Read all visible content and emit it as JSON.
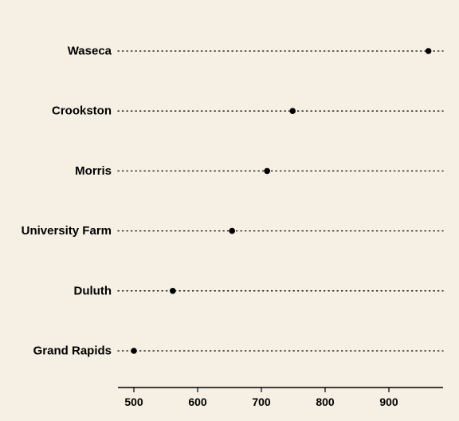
{
  "chart_data": {
    "type": "scatter",
    "style": "dot-plot",
    "categories": [
      "Waseca",
      "Crookston",
      "Morris",
      "University Farm",
      "Duluth",
      "Grand Rapids"
    ],
    "values": [
      962,
      749,
      709,
      654,
      561,
      500
    ],
    "title": "",
    "xlabel": "",
    "ylabel": "",
    "xlim": [
      475,
      985
    ],
    "xticks": [
      500,
      600,
      700,
      800,
      900
    ],
    "tick_labels": [
      "500",
      "600",
      "700",
      "800",
      "900"
    ],
    "grid": false,
    "legend": "none",
    "colors": {
      "background": "#f5f0e3",
      "point": "#000000",
      "guide": "#000000",
      "text": "#000000"
    }
  }
}
